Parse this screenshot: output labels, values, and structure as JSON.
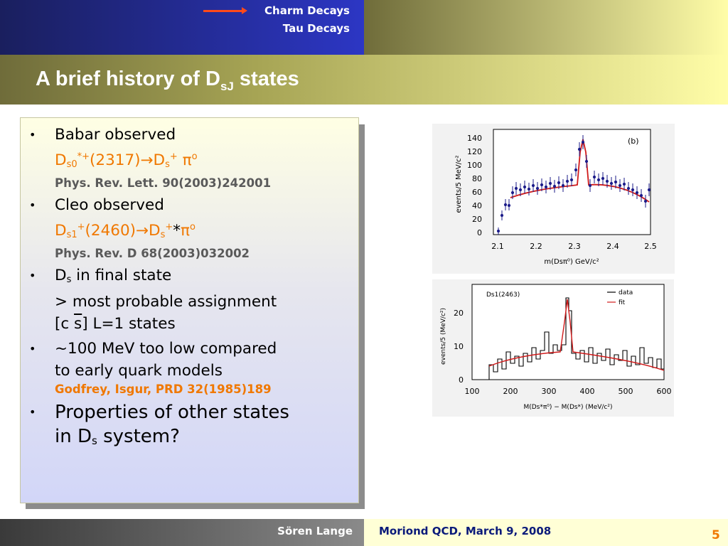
{
  "header": {
    "nav_active": "Charm Decays",
    "nav_other": "Tau Decays",
    "title_main": "A brief history of D",
    "title_sub": "sJ",
    "title_end": " states"
  },
  "bullets": {
    "b1_head": "Babar observed",
    "b1_D": "D",
    "b1_s0": "s0",
    "b1_sup": "*+",
    "b1_mass": "(2317)",
    "b1_arrow": "→",
    "b1_D2": "D",
    "b1_s": "s",
    "b1_plus": "+",
    "b1_pi": " π",
    "b1_zero": "o",
    "b1_ref": "Phys. Rev. Lett. 90(2003)242001",
    "b2_head": "Cleo observed",
    "b2_D": "D",
    "b2_s1": "s1",
    "b2_sup": "+",
    "b2_mass": "(2460)",
    "b2_arrow": "→",
    "b2_D2": "D",
    "b2_s": "s",
    "b2_plus": "+",
    "b2_star": "*",
    "b2_pi": "π",
    "b2_zero": "o",
    "b2_ref": "Phys. Rev. D 68(2003)032002",
    "b3_D": "D",
    "b3_s": "s",
    "b3_rest": " in final state",
    "b3_line2": "> most probable assignment",
    "b3_line3a": "[c  ",
    "b3_sbar": "s",
    "b3_line3b": "]  L=1 states",
    "b4_line1": "~100 MeV too low compared",
    "b4_line2": "to early quark models",
    "b4_ref": "Godfrey, Isgur, PRD 32(1985)189",
    "b5_line1": "Properties of other states",
    "b5_line2a": "in D",
    "b5_s": "s",
    "b5_line2b": " system?"
  },
  "plot1": {
    "panel_label": "(b)",
    "ylabel": "events/5 MeV/c²",
    "xlabel": "m(Dsπ⁰) GeV/c²",
    "yticks": [
      "140",
      "120",
      "100",
      "80",
      "60",
      "40",
      "20",
      "0"
    ],
    "xticks": [
      "2.1",
      "2.2",
      "2.3",
      "2.4",
      "2.5"
    ]
  },
  "plot2": {
    "panel_label": "Ds1(2463)",
    "legend_data": "data",
    "legend_fit": "fit",
    "ylabel": "events/5 (MeV/c²)",
    "xlabel": "M(Ds*π⁰) − M(Ds*) (MeV/c²)",
    "yticks": [
      "20",
      "10",
      "0"
    ],
    "xticks": [
      "100",
      "200",
      "300",
      "400",
      "500",
      "600"
    ]
  },
  "footer": {
    "author": "Sören Lange",
    "conference": "Moriond QCD, March 9, 2008",
    "page": "5"
  }
}
